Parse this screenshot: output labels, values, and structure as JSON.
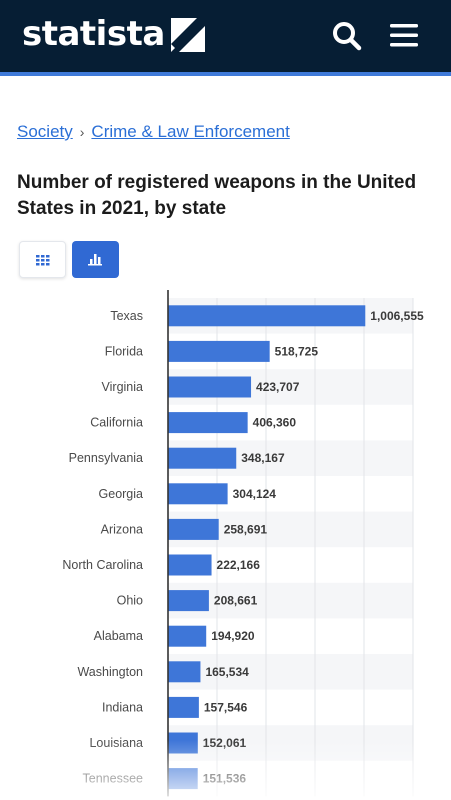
{
  "header": {
    "logo_text": "statista",
    "icons": {
      "search": "search-icon",
      "menu": "hamburger-menu-icon"
    },
    "background_color": "#061e34",
    "accent_color": "#3f7ad9"
  },
  "breadcrumb": {
    "items": [
      "Society",
      "Crime & Law Enforcement"
    ],
    "separator": "›"
  },
  "title": "Number of registered weapons in the United States in 2021, by state",
  "view_toggle": {
    "table_icon": "grid-icon",
    "chart_icon": "bar-chart-icon",
    "active": "chart"
  },
  "chart_data": {
    "type": "bar",
    "orientation": "horizontal",
    "title": "",
    "xlabel": "",
    "ylabel": "",
    "categories": [
      "Texas",
      "Florida",
      "Virginia",
      "California",
      "Pennsylvania",
      "Georgia",
      "Arizona",
      "North Carolina",
      "Ohio",
      "Alabama",
      "Washington",
      "Indiana",
      "Louisiana",
      "Tennessee"
    ],
    "values": [
      1006555,
      518725,
      423707,
      406360,
      348167,
      304124,
      258691,
      222166,
      208661,
      194920,
      165534,
      157546,
      152061,
      151536
    ],
    "value_labels": [
      "1,006,555",
      "518,725",
      "423,707",
      "406,360",
      "348,167",
      "304,124",
      "258,691",
      "222,166",
      "208,661",
      "194,920",
      "165,534",
      "157,546",
      "152,061",
      "151,536"
    ],
    "xlim": [
      0,
      1250000
    ],
    "grid": true,
    "legend": "none",
    "bar_color": "#3e76d8"
  }
}
